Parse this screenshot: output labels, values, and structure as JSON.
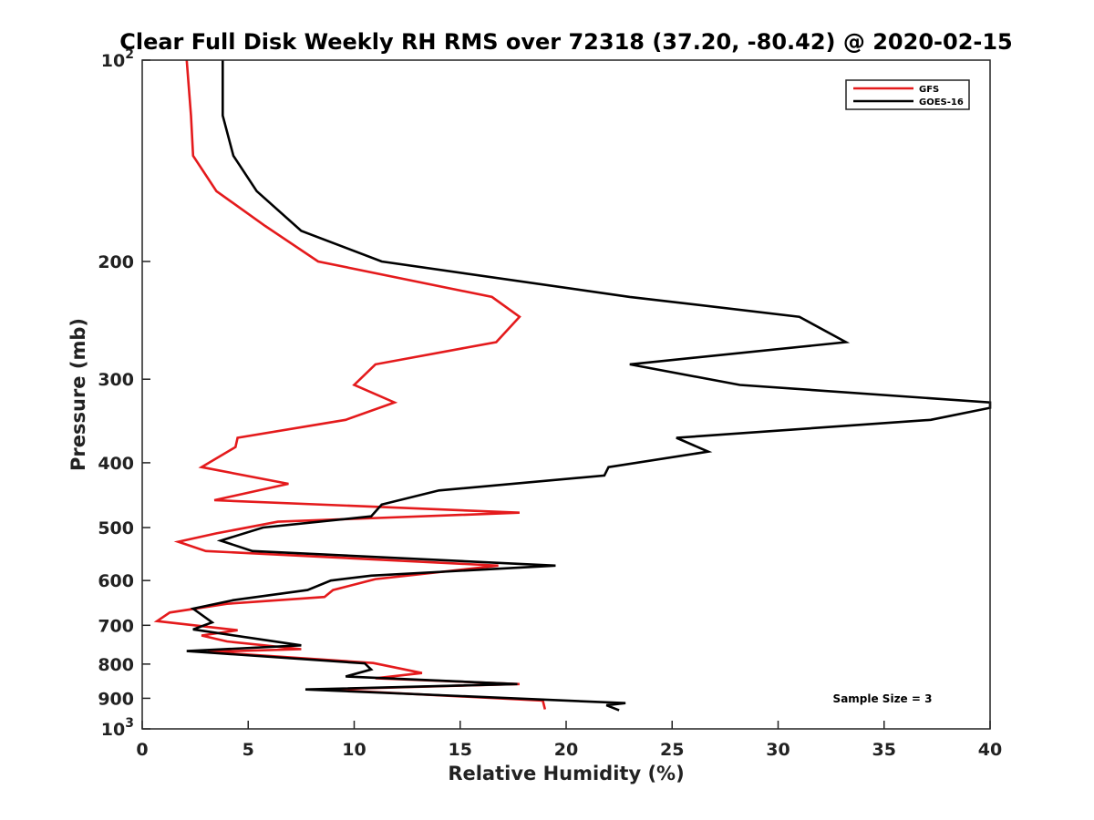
{
  "chart_data": {
    "type": "line",
    "title": "Clear Full Disk Weekly RH RMS over 72318 (37.20, -80.42) @ 2020-02-15",
    "xlabel": "Relative Humidity (%)",
    "ylabel": "Pressure (mb)",
    "xlim": [
      0,
      40
    ],
    "ylim": [
      100,
      1000
    ],
    "yscale": "log",
    "y_reversed": true,
    "grid": false,
    "legend_position": "top-right",
    "xticks": [
      0,
      5,
      10,
      15,
      20,
      25,
      30,
      35,
      40
    ],
    "xtick_labels": [
      "0",
      "5",
      "10",
      "15",
      "20",
      "25",
      "30",
      "35",
      "40"
    ],
    "yticks": [
      100,
      200,
      300,
      400,
      500,
      600,
      700,
      800,
      900,
      1000
    ],
    "ytick_labels": [
      "10^2",
      "200",
      "300",
      "400",
      "500",
      "600",
      "700",
      "800",
      "900",
      "10^3"
    ],
    "series": [
      {
        "name": "GFS",
        "color": "#e41a1c",
        "points": [
          [
            2.1,
            100
          ],
          [
            2.3,
            121
          ],
          [
            2.4,
            139
          ],
          [
            3.5,
            157
          ],
          [
            5.8,
            177
          ],
          [
            8.3,
            200
          ],
          [
            16.5,
            226
          ],
          [
            17.8,
            242
          ],
          [
            16.7,
            264
          ],
          [
            11.0,
            285
          ],
          [
            10.0,
            306
          ],
          [
            11.9,
            325
          ],
          [
            9.6,
            345
          ],
          [
            4.5,
            367
          ],
          [
            4.4,
            379
          ],
          [
            2.8,
            406
          ],
          [
            6.9,
            430
          ],
          [
            3.4,
            455
          ],
          [
            17.8,
            475
          ],
          [
            6.4,
            490
          ],
          [
            3.5,
            510
          ],
          [
            1.7,
            525
          ],
          [
            3.0,
            542
          ],
          [
            16.8,
            570
          ],
          [
            11.0,
            597
          ],
          [
            9.0,
            620
          ],
          [
            8.6,
            635
          ],
          [
            4.0,
            650
          ],
          [
            1.3,
            670
          ],
          [
            0.7,
            690
          ],
          [
            4.5,
            712
          ],
          [
            2.8,
            725
          ],
          [
            4.0,
            740
          ],
          [
            7.5,
            760
          ],
          [
            3.1,
            767
          ],
          [
            10.9,
            797
          ],
          [
            13.2,
            825
          ],
          [
            11.0,
            840
          ],
          [
            17.8,
            857
          ],
          [
            8.5,
            873
          ],
          [
            18.9,
            907
          ],
          [
            19.0,
            935
          ]
        ]
      },
      {
        "name": "GOES-16",
        "color": "#000000",
        "points": [
          [
            3.8,
            100
          ],
          [
            3.8,
            121
          ],
          [
            4.3,
            139
          ],
          [
            5.4,
            157
          ],
          [
            7.5,
            180
          ],
          [
            11.3,
            200
          ],
          [
            23.0,
            226
          ],
          [
            31.0,
            242
          ],
          [
            33.2,
            264
          ],
          [
            23.0,
            285
          ],
          [
            28.2,
            306
          ],
          [
            40.0,
            325
          ],
          [
            40.0,
            331
          ],
          [
            37.2,
            345
          ],
          [
            25.2,
            367
          ],
          [
            26.7,
            385
          ],
          [
            22.0,
            406
          ],
          [
            21.8,
            418
          ],
          [
            14.0,
            440
          ],
          [
            11.3,
            462
          ],
          [
            10.8,
            481
          ],
          [
            5.7,
            500
          ],
          [
            3.7,
            523
          ],
          [
            5.2,
            542
          ],
          [
            19.5,
            570
          ],
          [
            10.8,
            590
          ],
          [
            8.9,
            600
          ],
          [
            7.8,
            620
          ],
          [
            4.3,
            642
          ],
          [
            2.4,
            661
          ],
          [
            3.3,
            693
          ],
          [
            2.4,
            710
          ],
          [
            7.5,
            750
          ],
          [
            2.1,
            765
          ],
          [
            10.5,
            798
          ],
          [
            10.8,
            815
          ],
          [
            9.6,
            835
          ],
          [
            17.7,
            857
          ],
          [
            7.7,
            873
          ],
          [
            22.8,
            915
          ],
          [
            21.9,
            922
          ],
          [
            22.5,
            938
          ]
        ]
      }
    ],
    "annotations": [
      "Sample Size = 3"
    ]
  }
}
